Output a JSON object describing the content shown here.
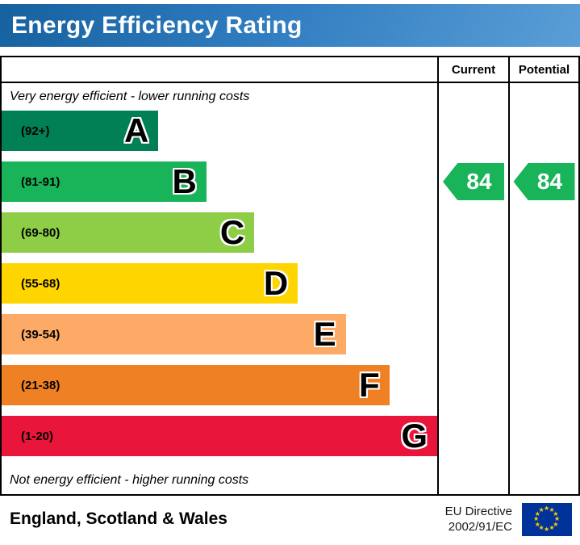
{
  "header": {
    "title": "Energy Efficiency Rating"
  },
  "chart": {
    "columns": {
      "current": "Current",
      "potential": "Potential"
    },
    "top_note": "Very energy efficient - lower running costs",
    "bottom_note": "Not energy efficient - higher running costs",
    "bands": [
      {
        "letter": "A",
        "range": "(92+)",
        "color": "#008054",
        "width_pct": 36
      },
      {
        "letter": "B",
        "range": "(81-91)",
        "color": "#19b459",
        "width_pct": 47
      },
      {
        "letter": "C",
        "range": "(69-80)",
        "color": "#8dce46",
        "width_pct": 58
      },
      {
        "letter": "D",
        "range": "(55-68)",
        "color": "#ffd500",
        "width_pct": 68
      },
      {
        "letter": "E",
        "range": "(39-54)",
        "color": "#fcaa65",
        "width_pct": 79
      },
      {
        "letter": "F",
        "range": "(21-38)",
        "color": "#ef8023",
        "width_pct": 89
      },
      {
        "letter": "G",
        "range": "(1-20)",
        "color": "#e9153b",
        "width_pct": 100
      }
    ],
    "current": {
      "value": "84",
      "band": "B",
      "color": "#19b459"
    },
    "potential": {
      "value": "84",
      "band": "B",
      "color": "#19b459"
    }
  },
  "footer": {
    "region": "England, Scotland & Wales",
    "directive_line1": "EU Directive",
    "directive_line2": "2002/91/EC",
    "eu_flag": {
      "bg_color": "#003399",
      "star_color": "#ffcc00"
    }
  },
  "chart_data": {
    "type": "bar",
    "title": "Energy Efficiency Rating",
    "categories": [
      "A",
      "B",
      "C",
      "D",
      "E",
      "F",
      "G"
    ],
    "band_ranges": [
      "92+",
      "81-91",
      "69-80",
      "55-68",
      "39-54",
      "21-38",
      "1-20"
    ],
    "band_colors": [
      "#008054",
      "#19b459",
      "#8dce46",
      "#ffd500",
      "#fcaa65",
      "#ef8023",
      "#e9153b"
    ],
    "bar_widths_pct": [
      36,
      47,
      58,
      68,
      79,
      89,
      100
    ],
    "series": [
      {
        "name": "Current",
        "value": 84,
        "band": "B"
      },
      {
        "name": "Potential",
        "value": 84,
        "band": "B"
      }
    ],
    "annotations": [
      "Very energy efficient - lower running costs",
      "Not energy efficient - higher running costs"
    ],
    "legend_position": "none",
    "footer_note": "England, Scotland & Wales — EU Directive 2002/91/EC"
  }
}
